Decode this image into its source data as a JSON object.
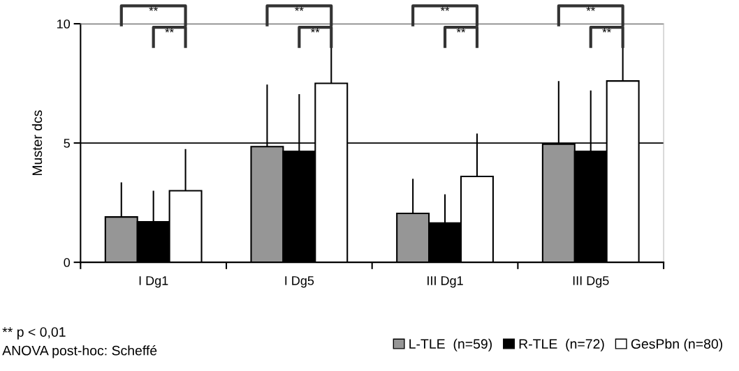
{
  "chart_data": {
    "type": "bar",
    "ylabel": "Muster dcs",
    "categories": [
      "I Dg1",
      "I Dg5",
      "III Dg1",
      "III Dg5"
    ],
    "series": [
      {
        "name": "L-TLE  (n=59)",
        "color": "#969696",
        "values": [
          1.9,
          4.85,
          2.05,
          4.95
        ],
        "errors": [
          [
            1.9,
            3.35
          ],
          [
            4.85,
            7.45
          ],
          [
            2.05,
            3.5
          ],
          [
            4.95,
            7.6
          ]
        ]
      },
      {
        "name": "R-TLE  (n=72)",
        "color": "#000000",
        "values": [
          1.7,
          4.65,
          1.65,
          4.65
        ],
        "errors": [
          [
            1.7,
            3.0
          ],
          [
            4.65,
            7.05
          ],
          [
            1.65,
            2.85
          ],
          [
            4.65,
            7.2
          ]
        ]
      },
      {
        "name": "GesPbn (n=80)",
        "color": "#ffffff",
        "values": [
          3.0,
          7.5,
          3.6,
          7.6
        ],
        "errors": [
          [
            3.0,
            4.75
          ],
          [
            7.5,
            9.25
          ],
          [
            3.6,
            5.4
          ],
          [
            7.6,
            9.2
          ]
        ]
      }
    ],
    "ylim": [
      0,
      10
    ],
    "yticks": [
      0,
      5,
      10
    ],
    "grid": "y",
    "legend": "bottom right",
    "annotations": [
      "**",
      "**",
      "**",
      "**",
      "**",
      "**",
      "**",
      "**",
      "** p < 0,01",
      "ANOVA post-hoc: Scheffé"
    ]
  }
}
